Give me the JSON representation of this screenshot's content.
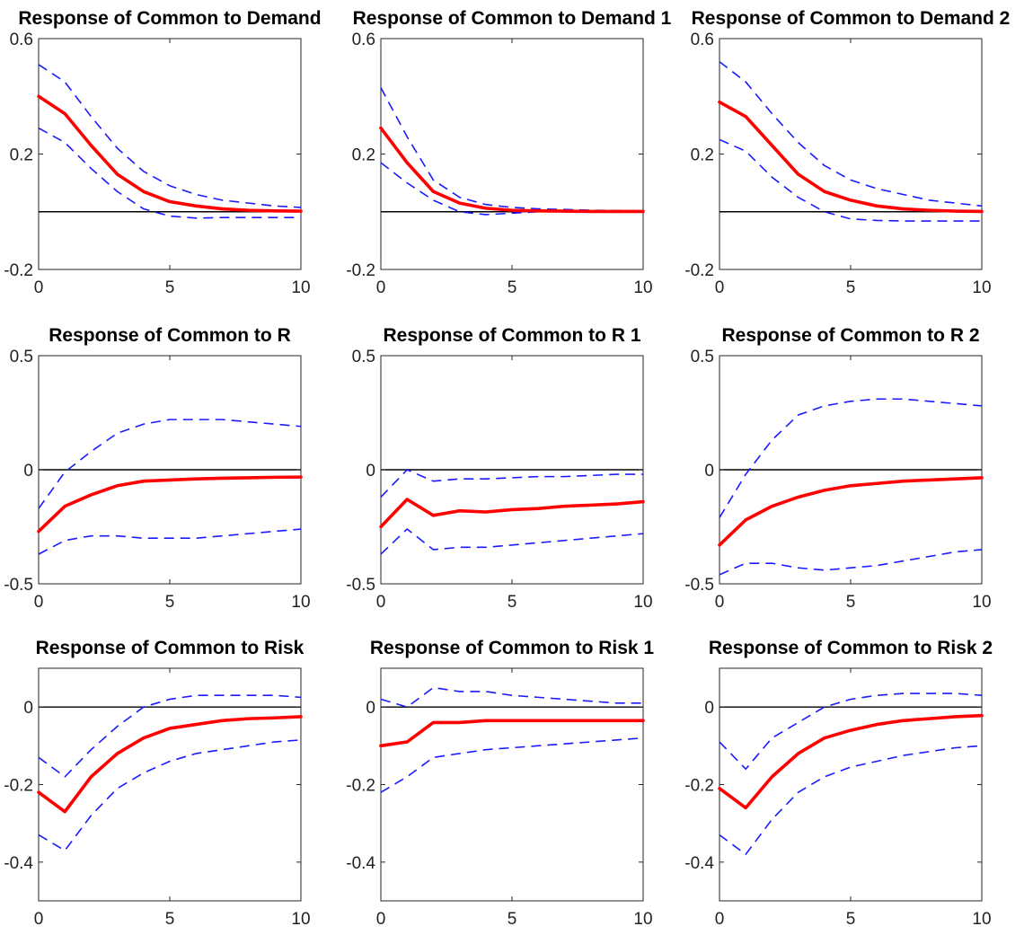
{
  "chart_data": [
    {
      "type": "line",
      "title": "Response of Common to Demand",
      "xlim": [
        0,
        10
      ],
      "ylim": [
        -0.2,
        0.6
      ],
      "xticks": [
        0,
        5,
        10
      ],
      "yticks": [
        -0.2,
        0.2,
        0.6
      ],
      "ytick_labels": [
        "-0.2",
        "0.2",
        "0.6"
      ],
      "zero_line": true,
      "x": [
        0,
        1,
        2,
        3,
        4,
        5,
        6,
        7,
        8,
        9,
        10
      ],
      "series": [
        {
          "role": "lower",
          "color": "#1a1aff",
          "dash": true,
          "values": [
            0.29,
            0.24,
            0.15,
            0.07,
            0.01,
            -0.015,
            -0.022,
            -0.02,
            -0.02,
            -0.02,
            -0.02
          ]
        },
        {
          "role": "upper",
          "color": "#1a1aff",
          "dash": true,
          "values": [
            0.51,
            0.45,
            0.33,
            0.22,
            0.14,
            0.09,
            0.06,
            0.04,
            0.03,
            0.02,
            0.015
          ]
        },
        {
          "role": "response",
          "color": "#ff0000",
          "dash": false,
          "values": [
            0.4,
            0.34,
            0.23,
            0.13,
            0.07,
            0.035,
            0.02,
            0.01,
            0.005,
            0.003,
            0.002
          ]
        }
      ]
    },
    {
      "type": "line",
      "title": "Response of Common to Demand 1",
      "xlim": [
        0,
        10
      ],
      "ylim": [
        -0.2,
        0.6
      ],
      "xticks": [
        0,
        5,
        10
      ],
      "yticks": [
        -0.2,
        0.2,
        0.6
      ],
      "ytick_labels": [
        "-0.2",
        "0.2",
        "0.6"
      ],
      "zero_line": true,
      "x": [
        0,
        1,
        2,
        3,
        4,
        5,
        6,
        7,
        8,
        9,
        10
      ],
      "series": [
        {
          "role": "lower",
          "color": "#1a1aff",
          "dash": true,
          "values": [
            0.17,
            0.1,
            0.04,
            0.0,
            -0.01,
            -0.005,
            0.0,
            0.0,
            0.0,
            0.0,
            0.0
          ]
        },
        {
          "role": "upper",
          "color": "#1a1aff",
          "dash": true,
          "values": [
            0.43,
            0.26,
            0.11,
            0.05,
            0.025,
            0.015,
            0.01,
            0.008,
            0.005,
            0.004,
            0.003
          ]
        },
        {
          "role": "response",
          "color": "#ff0000",
          "dash": false,
          "values": [
            0.29,
            0.17,
            0.07,
            0.03,
            0.012,
            0.005,
            0.003,
            0.002,
            0.001,
            0.001,
            0.001
          ]
        }
      ]
    },
    {
      "type": "line",
      "title": "Response of Common to Demand 2",
      "xlim": [
        0,
        10
      ],
      "ylim": [
        -0.2,
        0.6
      ],
      "xticks": [
        0,
        5,
        10
      ],
      "yticks": [
        -0.2,
        0.2,
        0.6
      ],
      "ytick_labels": [
        "-0.2",
        "0.2",
        "0.6"
      ],
      "zero_line": true,
      "x": [
        0,
        1,
        2,
        3,
        4,
        5,
        6,
        7,
        8,
        9,
        10
      ],
      "series": [
        {
          "role": "lower",
          "color": "#1a1aff",
          "dash": true,
          "values": [
            0.25,
            0.21,
            0.12,
            0.05,
            0.0,
            -0.025,
            -0.03,
            -0.032,
            -0.032,
            -0.032,
            -0.032
          ]
        },
        {
          "role": "upper",
          "color": "#1a1aff",
          "dash": true,
          "values": [
            0.52,
            0.45,
            0.34,
            0.24,
            0.16,
            0.11,
            0.08,
            0.06,
            0.04,
            0.03,
            0.02
          ]
        },
        {
          "role": "response",
          "color": "#ff0000",
          "dash": false,
          "values": [
            0.38,
            0.33,
            0.23,
            0.13,
            0.07,
            0.04,
            0.02,
            0.01,
            0.005,
            0.002,
            0.001
          ]
        }
      ]
    },
    {
      "type": "line",
      "title": "Response of Common to R",
      "xlim": [
        0,
        10
      ],
      "ylim": [
        -0.5,
        0.5
      ],
      "xticks": [
        0,
        5,
        10
      ],
      "yticks": [
        -0.5,
        0,
        0.5
      ],
      "ytick_labels": [
        "-0.5",
        "0",
        "0.5"
      ],
      "zero_line": true,
      "x": [
        0,
        1,
        2,
        3,
        4,
        5,
        6,
        7,
        8,
        9,
        10
      ],
      "series": [
        {
          "role": "lower",
          "color": "#1a1aff",
          "dash": true,
          "values": [
            -0.37,
            -0.31,
            -0.29,
            -0.29,
            -0.3,
            -0.3,
            -0.3,
            -0.29,
            -0.28,
            -0.27,
            -0.26
          ]
        },
        {
          "role": "upper",
          "color": "#1a1aff",
          "dash": true,
          "values": [
            -0.17,
            -0.01,
            0.08,
            0.16,
            0.2,
            0.22,
            0.22,
            0.22,
            0.21,
            0.2,
            0.19
          ]
        },
        {
          "role": "response",
          "color": "#ff0000",
          "dash": false,
          "values": [
            -0.27,
            -0.16,
            -0.11,
            -0.07,
            -0.05,
            -0.045,
            -0.04,
            -0.037,
            -0.035,
            -0.033,
            -0.032
          ]
        }
      ]
    },
    {
      "type": "line",
      "title": "Response of Common to R 1",
      "xlim": [
        0,
        10
      ],
      "ylim": [
        -0.5,
        0.5
      ],
      "xticks": [
        0,
        5,
        10
      ],
      "yticks": [
        -0.5,
        0,
        0.5
      ],
      "ytick_labels": [
        "-0.5",
        "0",
        "0.5"
      ],
      "zero_line": true,
      "x": [
        0,
        1,
        2,
        3,
        4,
        5,
        6,
        7,
        8,
        9,
        10
      ],
      "series": [
        {
          "role": "lower",
          "color": "#1a1aff",
          "dash": true,
          "values": [
            -0.37,
            -0.26,
            -0.35,
            -0.34,
            -0.34,
            -0.33,
            -0.32,
            -0.31,
            -0.3,
            -0.29,
            -0.28
          ]
        },
        {
          "role": "upper",
          "color": "#1a1aff",
          "dash": true,
          "values": [
            -0.12,
            0.0,
            -0.05,
            -0.04,
            -0.04,
            -0.035,
            -0.03,
            -0.03,
            -0.025,
            -0.02,
            -0.02
          ]
        },
        {
          "role": "response",
          "color": "#ff0000",
          "dash": false,
          "values": [
            -0.25,
            -0.13,
            -0.2,
            -0.18,
            -0.185,
            -0.175,
            -0.17,
            -0.16,
            -0.155,
            -0.15,
            -0.14
          ]
        }
      ]
    },
    {
      "type": "line",
      "title": "Response of Common to R 2",
      "xlim": [
        0,
        10
      ],
      "ylim": [
        -0.5,
        0.5
      ],
      "xticks": [
        0,
        5,
        10
      ],
      "yticks": [
        -0.5,
        0,
        0.5
      ],
      "ytick_labels": [
        "-0.5",
        "0",
        "0.5"
      ],
      "zero_line": true,
      "x": [
        0,
        1,
        2,
        3,
        4,
        5,
        6,
        7,
        8,
        9,
        10
      ],
      "series": [
        {
          "role": "lower",
          "color": "#1a1aff",
          "dash": true,
          "values": [
            -0.46,
            -0.41,
            -0.41,
            -0.43,
            -0.44,
            -0.43,
            -0.42,
            -0.4,
            -0.38,
            -0.36,
            -0.35
          ]
        },
        {
          "role": "upper",
          "color": "#1a1aff",
          "dash": true,
          "values": [
            -0.21,
            -0.02,
            0.13,
            0.24,
            0.28,
            0.3,
            0.31,
            0.31,
            0.3,
            0.29,
            0.28
          ]
        },
        {
          "role": "response",
          "color": "#ff0000",
          "dash": false,
          "values": [
            -0.33,
            -0.22,
            -0.16,
            -0.12,
            -0.09,
            -0.07,
            -0.06,
            -0.05,
            -0.045,
            -0.04,
            -0.035
          ]
        }
      ]
    },
    {
      "type": "line",
      "title": "Response of Common to Risk",
      "xlim": [
        0,
        10
      ],
      "ylim": [
        -0.5,
        0.1
      ],
      "xticks": [
        0,
        5,
        10
      ],
      "yticks": [
        -0.4,
        -0.2,
        0
      ],
      "ytick_labels": [
        "-0.4",
        "-0.2",
        "0"
      ],
      "zero_line": true,
      "x": [
        0,
        1,
        2,
        3,
        4,
        5,
        6,
        7,
        8,
        9,
        10
      ],
      "series": [
        {
          "role": "lower",
          "color": "#1a1aff",
          "dash": true,
          "values": [
            -0.33,
            -0.37,
            -0.28,
            -0.21,
            -0.17,
            -0.14,
            -0.12,
            -0.11,
            -0.1,
            -0.09,
            -0.085
          ]
        },
        {
          "role": "upper",
          "color": "#1a1aff",
          "dash": true,
          "values": [
            -0.13,
            -0.18,
            -0.11,
            -0.05,
            0.0,
            0.02,
            0.03,
            0.03,
            0.03,
            0.03,
            0.025
          ]
        },
        {
          "role": "response",
          "color": "#ff0000",
          "dash": false,
          "values": [
            -0.22,
            -0.27,
            -0.18,
            -0.12,
            -0.08,
            -0.055,
            -0.045,
            -0.035,
            -0.03,
            -0.028,
            -0.025
          ]
        }
      ]
    },
    {
      "type": "line",
      "title": "Response of Common to Risk 1",
      "xlim": [
        0,
        10
      ],
      "ylim": [
        -0.5,
        0.1
      ],
      "xticks": [
        0,
        5,
        10
      ],
      "yticks": [
        -0.4,
        -0.2,
        0
      ],
      "ytick_labels": [
        "-0.4",
        "-0.2",
        "0"
      ],
      "zero_line": true,
      "x": [
        0,
        1,
        2,
        3,
        4,
        5,
        6,
        7,
        8,
        9,
        10
      ],
      "series": [
        {
          "role": "lower",
          "color": "#1a1aff",
          "dash": true,
          "values": [
            -0.22,
            -0.18,
            -0.13,
            -0.12,
            -0.11,
            -0.105,
            -0.1,
            -0.095,
            -0.09,
            -0.085,
            -0.08
          ]
        },
        {
          "role": "upper",
          "color": "#1a1aff",
          "dash": true,
          "values": [
            0.02,
            0.0,
            0.05,
            0.04,
            0.04,
            0.03,
            0.025,
            0.02,
            0.015,
            0.01,
            0.01
          ]
        },
        {
          "role": "response",
          "color": "#ff0000",
          "dash": false,
          "values": [
            -0.1,
            -0.09,
            -0.04,
            -0.04,
            -0.035,
            -0.035,
            -0.035,
            -0.035,
            -0.035,
            -0.035,
            -0.035
          ]
        }
      ]
    },
    {
      "type": "line",
      "title": "Response of Common to Risk 2",
      "xlim": [
        0,
        10
      ],
      "ylim": [
        -0.5,
        0.1
      ],
      "xticks": [
        0,
        5,
        10
      ],
      "yticks": [
        -0.4,
        -0.2,
        0
      ],
      "ytick_labels": [
        "-0.4",
        "-0.2",
        "0"
      ],
      "zero_line": true,
      "x": [
        0,
        1,
        2,
        3,
        4,
        5,
        6,
        7,
        8,
        9,
        10
      ],
      "series": [
        {
          "role": "lower",
          "color": "#1a1aff",
          "dash": true,
          "values": [
            -0.33,
            -0.38,
            -0.29,
            -0.22,
            -0.18,
            -0.155,
            -0.14,
            -0.125,
            -0.115,
            -0.105,
            -0.1
          ]
        },
        {
          "role": "upper",
          "color": "#1a1aff",
          "dash": true,
          "values": [
            -0.09,
            -0.16,
            -0.08,
            -0.04,
            0.0,
            0.02,
            0.03,
            0.035,
            0.035,
            0.035,
            0.03
          ]
        },
        {
          "role": "response",
          "color": "#ff0000",
          "dash": false,
          "values": [
            -0.21,
            -0.26,
            -0.18,
            -0.12,
            -0.08,
            -0.06,
            -0.045,
            -0.035,
            -0.03,
            -0.025,
            -0.022
          ]
        }
      ]
    }
  ]
}
